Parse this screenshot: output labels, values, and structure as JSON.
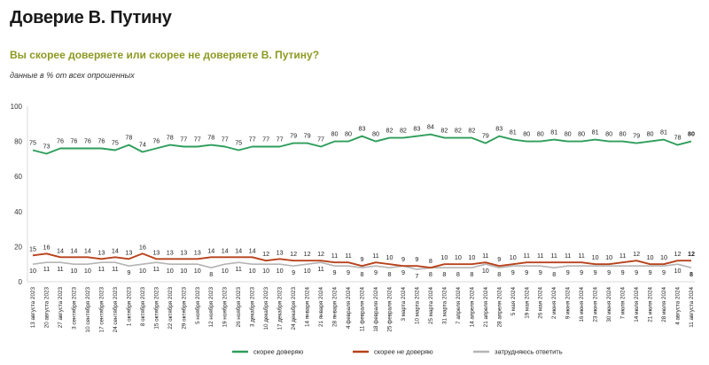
{
  "header": {
    "title": "Доверие В. Путину",
    "subtitle": "Вы скорее доверяете или скорее не доверяете В. Путину?",
    "note": "данные в % от всех опрошенных"
  },
  "colors": {
    "trust": "#2e9e5b",
    "distrust": "#b8421b",
    "hard": "#b5b5b5"
  },
  "chart_data": {
    "type": "line",
    "ylim": [
      0,
      100
    ],
    "yticks": [
      0,
      20,
      40,
      60,
      80,
      100
    ],
    "grid": false,
    "legend_position": "bottom",
    "categories": [
      "13 августа 2023",
      "20 августа 2023",
      "27 августа 2023",
      "3 сентября 2023",
      "10 сентября 2023",
      "17 сентября 2023",
      "24 сентября 2023",
      "1 октября 2023",
      "8 октября 2023",
      "15 октября 2023",
      "22 октября 2023",
      "29 октября 2023",
      "5 ноября 2023",
      "12 ноября 2023",
      "19 ноября 2023",
      "26 ноября 2023",
      "3 декабря 2023",
      "10 декабря 2023",
      "17 декабря 2023",
      "24 декабря 2023",
      "14 января 2024",
      "21 января 2024",
      "28 января 2024",
      "4 февраля 2024",
      "11 февраля 2024",
      "18 февраля 2024",
      "25 февраля 2024",
      "3 марта 2024",
      "10 марта 2024",
      "25 марта 2024",
      "31 марта 2024",
      "7 апреля 2024",
      "14 апреля 2024",
      "21 апреля 2024",
      "28 апреля 2024",
      "5 мая 2024",
      "19 мая 2024",
      "26 мая 2024",
      "2 июня 2024",
      "9 июня 2024",
      "16 июня 2024",
      "23 июня 2024",
      "30 июня 2024",
      "7 июля 2024",
      "14 июля 2024",
      "21 июля 2024",
      "28 июля 2024",
      "4 августа 2024",
      "11 августа 2024"
    ],
    "series": [
      {
        "name": "скорее доверяю",
        "key": "trust",
        "values": [
          75,
          73,
          76,
          76,
          76,
          76,
          75,
          78,
          74,
          76,
          78,
          77,
          77,
          78,
          77,
          75,
          77,
          77,
          77,
          79,
          79,
          77,
          80,
          80,
          83,
          80,
          82,
          82,
          83,
          84,
          82,
          82,
          82,
          79,
          83,
          81,
          80,
          80,
          81,
          80,
          80,
          81,
          80,
          80,
          79,
          80,
          81,
          78,
          80
        ]
      },
      {
        "name": "скорее не доверяю",
        "key": "distrust",
        "values": [
          15,
          16,
          14,
          14,
          14,
          13,
          14,
          13,
          16,
          13,
          13,
          13,
          13,
          14,
          14,
          14,
          14,
          12,
          13,
          12,
          12,
          12,
          11,
          11,
          9,
          11,
          10,
          9,
          9,
          8,
          10,
          10,
          10,
          11,
          9,
          10,
          11,
          11,
          11,
          11,
          11,
          10,
          10,
          11,
          12,
          10,
          10,
          12,
          12
        ]
      },
      {
        "name": "затрудняюсь ответить",
        "key": "hard",
        "values": [
          10,
          11,
          11,
          10,
          10,
          11,
          11,
          9,
          10,
          11,
          10,
          10,
          10,
          8,
          10,
          11,
          10,
          10,
          10,
          9,
          10,
          11,
          9,
          9,
          8,
          9,
          8,
          9,
          7,
          8,
          8,
          8,
          8,
          10,
          8,
          9,
          9,
          9,
          8,
          9,
          9,
          9,
          9,
          9,
          9,
          9,
          9,
          10,
          8
        ]
      }
    ]
  }
}
